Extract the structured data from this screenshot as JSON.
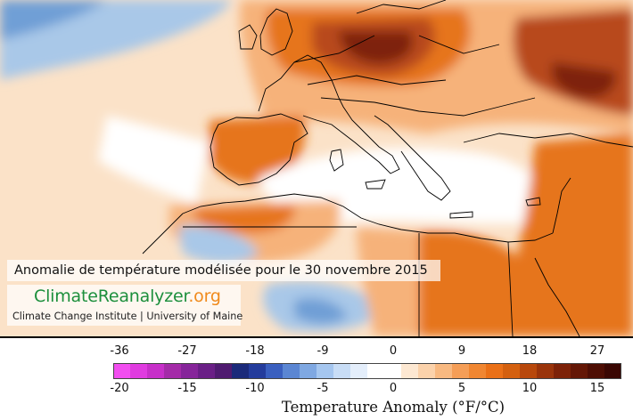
{
  "map": {
    "title": "Anomalie de température modélisée pour le 30 novembre 2015",
    "logo": {
      "part1": "ClimateReanalyzer",
      "part2": ".org"
    },
    "institute": "Climate Change Institute | University of Maine",
    "colors": {
      "ocean_warm": "#fbe2c8",
      "land_warm": "#f6b27a",
      "strong_warm": "#e6741f",
      "very_warm": "#b8491a",
      "hot_core": "#7e2410",
      "cool": "#a9c8e8",
      "cold": "#6f9fd6",
      "neutral": "#ffffff",
      "coast": "#000000"
    }
  },
  "legend": {
    "fahrenheit_ticks": [
      "-36",
      "-27",
      "-18",
      "-9",
      "0",
      "9",
      "18",
      "27"
    ],
    "celsius_ticks": [
      "-20",
      "-15",
      "-10",
      "-5",
      "0",
      "5",
      "10",
      "15"
    ],
    "unit_label": "Temperature Anomaly (°F/°C)",
    "range_c": [
      -20,
      20
    ],
    "colors": [
      "#f24ef0",
      "#e03be0",
      "#c72fc9",
      "#a42ba8",
      "#86259a",
      "#6a1f86",
      "#4f1b70",
      "#1b2a7a",
      "#243c9c",
      "#3a5fbf",
      "#5b86d3",
      "#7fa8e2",
      "#a5c6ef",
      "#c8ddf6",
      "#e4eefb",
      "#ffffff",
      "#ffffff",
      "#fde8d2",
      "#fbd2ab",
      "#f8b981",
      "#f59e57",
      "#f08631",
      "#ea7017",
      "#d4600f",
      "#b8480c",
      "#9a340b",
      "#7d2208",
      "#641706",
      "#4e0e04",
      "#3a0703"
    ]
  }
}
